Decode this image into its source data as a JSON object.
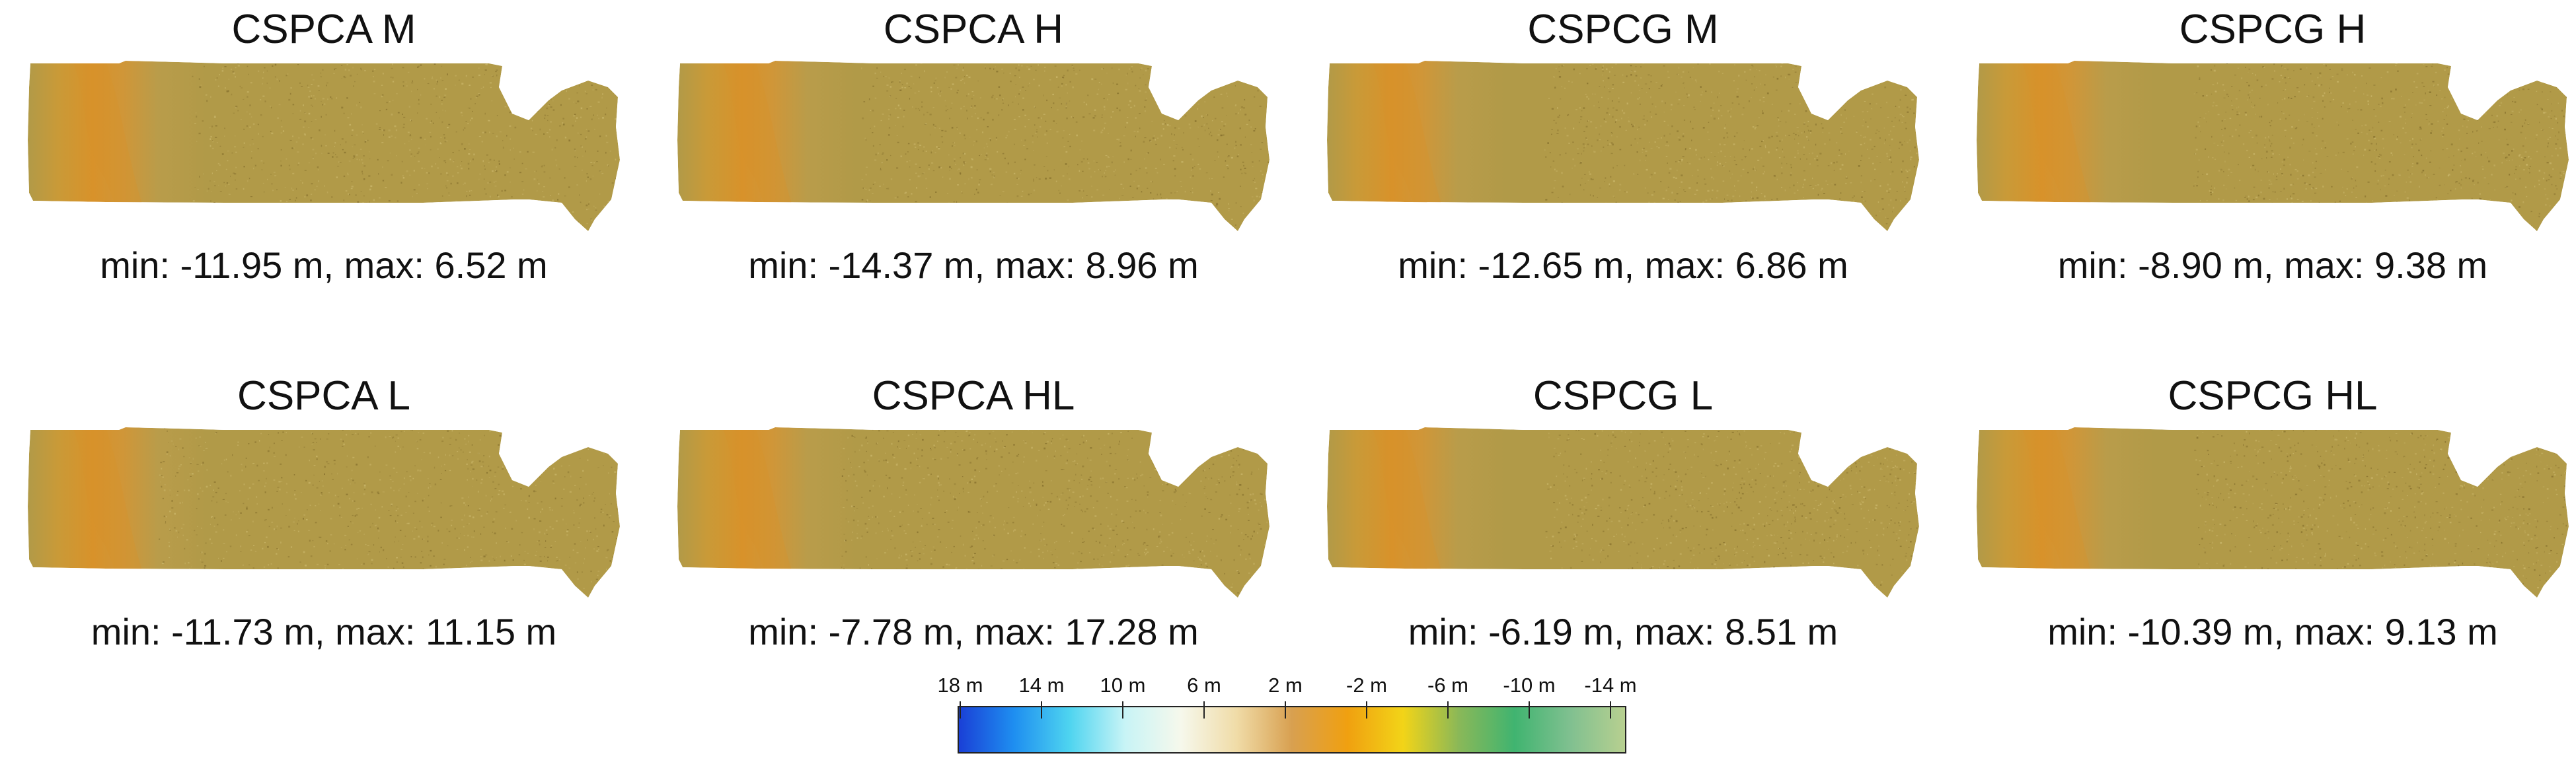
{
  "colors": {
    "terrain_base": "#b19a48",
    "terrain_orange": "#d8922a",
    "terrain_dark": "#8a7430",
    "terrain_light": "#c8b468"
  },
  "panels": [
    {
      "title": "CSPCA M",
      "range": "min: -11.95 m, max: 6.52 m"
    },
    {
      "title": "CSPCA H",
      "range": "min: -14.37 m, max: 8.96 m"
    },
    {
      "title": "CSPCG M",
      "range": "min: -12.65 m, max: 6.86 m"
    },
    {
      "title": "CSPCG H",
      "range": "min: -8.90 m, max: 9.38 m"
    },
    {
      "title": "CSPCA L",
      "range": "min: -11.73 m, max: 11.15 m"
    },
    {
      "title": "CSPCA HL",
      "range": "min: -7.78 m, max: 17.28 m"
    },
    {
      "title": "CSPCG L",
      "range": "min: -6.19 m, max: 8.51 m"
    },
    {
      "title": "CSPCG HL",
      "range": "min: -10.39 m, max: 9.13 m"
    }
  ],
  "colorbar": {
    "ticks": [
      "18 m",
      "14 m",
      "10 m",
      "6 m",
      "2 m",
      "-2 m",
      "-6 m",
      "-10 m",
      "-14 m"
    ],
    "stops": [
      "#1a3fd6",
      "#1e8ef0",
      "#4ed4f0",
      "#c8f4f6",
      "#f6f8ec",
      "#f0dca8",
      "#d8a050",
      "#f0a010",
      "#f2d418",
      "#8ab858",
      "#40b470",
      "#80c090",
      "#b8d090"
    ]
  }
}
